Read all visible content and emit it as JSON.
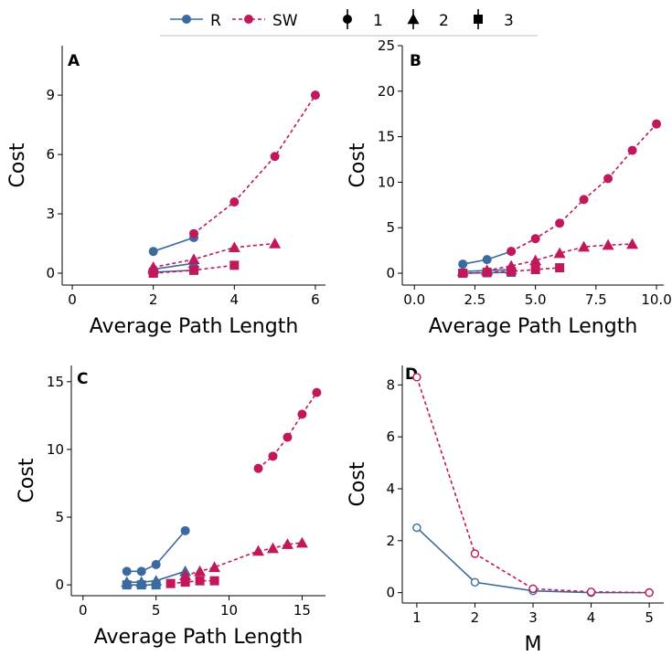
{
  "colors": {
    "R": "#3a6a9e",
    "SW": "#c0185a"
  },
  "legend": {
    "items": [
      {
        "key": "R",
        "label": "R",
        "type": "line",
        "series": "R"
      },
      {
        "key": "SW",
        "label": "SW",
        "type": "line",
        "series": "SW"
      },
      {
        "key": "1",
        "label": "1",
        "type": "shape",
        "shape": "circle"
      },
      {
        "key": "2",
        "label": "2",
        "type": "shape",
        "shape": "triangle"
      },
      {
        "key": "3",
        "label": "3",
        "type": "shape",
        "shape": "square"
      }
    ]
  },
  "chart_data": [
    {
      "panel": "A",
      "type": "line",
      "xlabel": "Average Path Length",
      "ylabel": "Cost",
      "xlim": [
        -0.25,
        6.25
      ],
      "ylim": [
        -0.6,
        11.5
      ],
      "xticks": [
        0,
        2,
        4,
        6
      ],
      "xtick_labels": [
        "0",
        "2",
        "4",
        "6"
      ],
      "yticks": [
        0,
        3,
        6,
        9
      ],
      "ytick_labels": [
        "0",
        "3",
        "6",
        "9"
      ],
      "series": [
        {
          "group": "R",
          "shape": "circle",
          "x": [
            2,
            3
          ],
          "y": [
            1.1,
            1.8
          ]
        },
        {
          "group": "R",
          "shape": "triangle",
          "x": [
            2,
            3
          ],
          "y": [
            0.2,
            0.5
          ]
        },
        {
          "group": "R",
          "shape": "square",
          "x": [
            2,
            3
          ],
          "y": [
            0.05,
            0.15
          ]
        },
        {
          "group": "SW",
          "shape": "circle",
          "x": [
            3,
            4,
            5,
            6
          ],
          "y": [
            2.0,
            3.6,
            5.9,
            9.0
          ]
        },
        {
          "group": "SW",
          "shape": "triangle",
          "x": [
            2,
            3,
            4,
            5
          ],
          "y": [
            0.3,
            0.7,
            1.3,
            1.5
          ]
        },
        {
          "group": "SW",
          "shape": "square",
          "x": [
            2,
            3,
            4
          ],
          "y": [
            0.0,
            0.15,
            0.4
          ]
        }
      ]
    },
    {
      "panel": "B",
      "type": "line",
      "xlabel": "Average Path Length",
      "ylabel": "Cost",
      "xlim": [
        -0.5,
        10.3
      ],
      "ylim": [
        -1.3,
        25.0
      ],
      "xticks": [
        0,
        2.5,
        5,
        7.5,
        10
      ],
      "xtick_labels": [
        "0.0",
        "2.5",
        "5.0",
        "7.5",
        "10.0"
      ],
      "yticks": [
        0,
        5,
        10,
        15,
        20,
        25
      ],
      "ytick_labels": [
        "0",
        "5",
        "10",
        "15",
        "20",
        "25"
      ],
      "series": [
        {
          "group": "R",
          "shape": "circle",
          "x": [
            2,
            3,
            4
          ],
          "y": [
            1.0,
            1.5,
            2.4
          ]
        },
        {
          "group": "R",
          "shape": "triangle",
          "x": [
            2,
            3,
            4
          ],
          "y": [
            0.2,
            0.3,
            0.4
          ]
        },
        {
          "group": "R",
          "shape": "square",
          "x": [
            2,
            3,
            4
          ],
          "y": [
            0.0,
            0.05,
            0.1
          ]
        },
        {
          "group": "SW",
          "shape": "circle",
          "x": [
            4,
            5,
            6,
            7,
            8,
            9,
            10
          ],
          "y": [
            2.4,
            3.8,
            5.5,
            8.1,
            10.4,
            13.5,
            16.4
          ]
        },
        {
          "group": "SW",
          "shape": "triangle",
          "x": [
            3,
            4,
            5,
            6,
            7,
            8,
            9
          ],
          "y": [
            0.3,
            0.8,
            1.4,
            2.2,
            2.9,
            3.1,
            3.2
          ]
        },
        {
          "group": "SW",
          "shape": "square",
          "x": [
            2,
            3,
            4,
            5,
            6
          ],
          "y": [
            0.0,
            0.1,
            0.2,
            0.4,
            0.6
          ]
        }
      ]
    },
    {
      "panel": "C",
      "type": "line",
      "xlabel": "Average Path Length",
      "ylabel": "Cost",
      "xlim": [
        -0.8,
        16.6
      ],
      "ylim": [
        -0.8,
        16.2
      ],
      "xticks": [
        0,
        5,
        10,
        15
      ],
      "xtick_labels": [
        "0",
        "5",
        "10",
        "15"
      ],
      "yticks": [
        0,
        5,
        10,
        15
      ],
      "ytick_labels": [
        "0",
        "5",
        "10",
        "15"
      ],
      "series": [
        {
          "group": "R",
          "shape": "circle",
          "x": [
            3,
            4,
            5,
            7
          ],
          "y": [
            1.0,
            1.0,
            1.5,
            4.0
          ]
        },
        {
          "group": "R",
          "shape": "triangle",
          "x": [
            3,
            4,
            5,
            7
          ],
          "y": [
            0.2,
            0.2,
            0.3,
            1.0
          ]
        },
        {
          "group": "R",
          "shape": "square",
          "x": [
            3,
            4,
            5
          ],
          "y": [
            0.0,
            0.0,
            0.0
          ]
        },
        {
          "group": "SW",
          "shape": "circle",
          "x": [
            12,
            13,
            14,
            15,
            16
          ],
          "y": [
            8.6,
            9.5,
            10.9,
            12.6,
            14.2
          ]
        },
        {
          "group": "SW",
          "shape": "triangle",
          "x": [
            7,
            8,
            9,
            12,
            13,
            14,
            15
          ],
          "y": [
            0.7,
            1.0,
            1.3,
            2.5,
            2.7,
            3.0,
            3.1
          ]
        },
        {
          "group": "SW",
          "shape": "square",
          "x": [
            6,
            7,
            8,
            9
          ],
          "y": [
            0.1,
            0.2,
            0.3,
            0.3
          ]
        }
      ]
    },
    {
      "panel": "D",
      "type": "line",
      "xlabel": "M",
      "ylabel": "Cost",
      "xlim": [
        0.75,
        5.25
      ],
      "ylim": [
        -0.4,
        8.75
      ],
      "xticks": [
        1,
        2,
        3,
        4,
        5
      ],
      "xtick_labels": [
        "1",
        "2",
        "3",
        "4",
        "5"
      ],
      "yticks": [
        0,
        2,
        4,
        6,
        8
      ],
      "ytick_labels": [
        "0",
        "2",
        "4",
        "6",
        "8"
      ],
      "series": [
        {
          "group": "R",
          "shape": "open-circle",
          "x": [
            1,
            2,
            3,
            4,
            5
          ],
          "y": [
            2.5,
            0.4,
            0.07,
            0.0,
            0.0
          ]
        },
        {
          "group": "SW",
          "shape": "open-circle",
          "x": [
            1,
            2,
            3,
            4,
            5
          ],
          "y": [
            8.3,
            1.5,
            0.15,
            0.03,
            0.0
          ]
        }
      ]
    }
  ]
}
